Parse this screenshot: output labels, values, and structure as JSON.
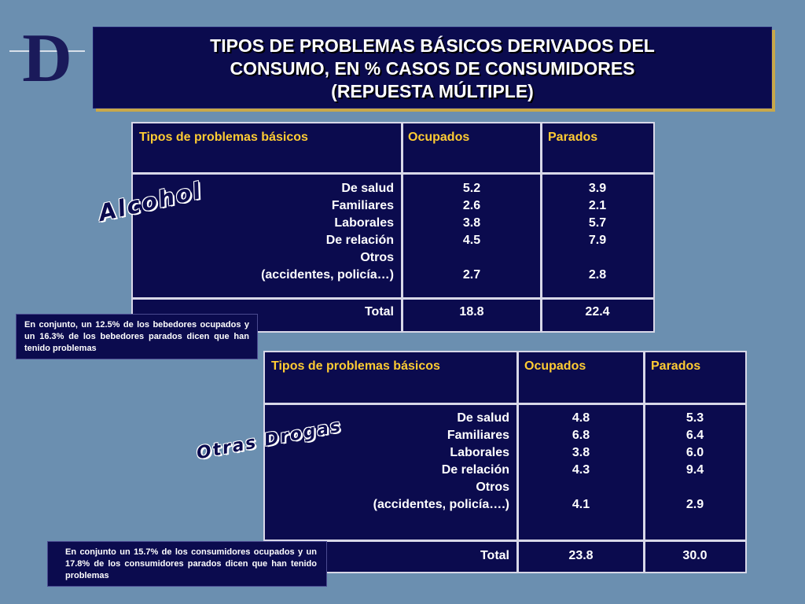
{
  "logo": {
    "letter": "D"
  },
  "title": {
    "line1": "TIPOS DE PROBLEMAS BÁSICOS DERIVADOS DEL",
    "line2": "CONSUMO, EN % CASOS DE CONSUMIDORES",
    "line3": "(REPUESTA MÚLTIPLE)"
  },
  "alcohol": {
    "section_label": "Alcohol",
    "headers": {
      "tipo": "Tipos de problemas básicos",
      "ocupados": "Ocupados",
      "parados": "Parados"
    },
    "rows": [
      {
        "tipo": "De salud",
        "ocupados": "5.2",
        "parados": "3.9"
      },
      {
        "tipo": "Familiares",
        "ocupados": "2.6",
        "parados": "2.1"
      },
      {
        "tipo": "Laborales",
        "ocupados": "3.8",
        "parados": "5.7"
      },
      {
        "tipo": "De relación",
        "ocupados": "4.5",
        "parados": "7.9"
      },
      {
        "tipo": "Otros",
        "ocupados": "",
        "parados": ""
      },
      {
        "tipo": "(accidentes, policía…)",
        "ocupados": "2.7",
        "parados": "2.8"
      }
    ],
    "total": {
      "label": "Total",
      "ocupados": "18.8",
      "parados": "22.4"
    },
    "note": "En conjunto, un 12.5% de los bebedores ocupados y un 16.3% de los bebedores parados dicen que han tenido problemas"
  },
  "drogas": {
    "section_label": "Otras Drogas",
    "headers": {
      "tipo": "Tipos de problemas básicos",
      "ocupados": "Ocupados",
      "parados": "Parados"
    },
    "rows": [
      {
        "tipo": "De salud",
        "ocupados": "4.8",
        "parados": "5.3"
      },
      {
        "tipo": "Familiares",
        "ocupados": "6.8",
        "parados": "6.4"
      },
      {
        "tipo": "Laborales",
        "ocupados": "3.8",
        "parados": "6.0"
      },
      {
        "tipo": "De relación",
        "ocupados": "4.3",
        "parados": "9.4"
      },
      {
        "tipo": "Otros",
        "ocupados": "",
        "parados": ""
      },
      {
        "tipo": "(accidentes, policía….)",
        "ocupados": "4.1",
        "parados": "2.9"
      }
    ],
    "total": {
      "label": "Total",
      "ocupados": "23.8",
      "parados": "30.0"
    },
    "note": "En conjunto un 15.7% de los consumidores ocupados y un 17.8% de los consumidores parados dicen que han tenido problemas"
  },
  "colors": {
    "background": "#6b8fb0",
    "panel": "#0b0b4e",
    "header_text": "#ffcc33",
    "title_shadow": "#c8a84a"
  }
}
